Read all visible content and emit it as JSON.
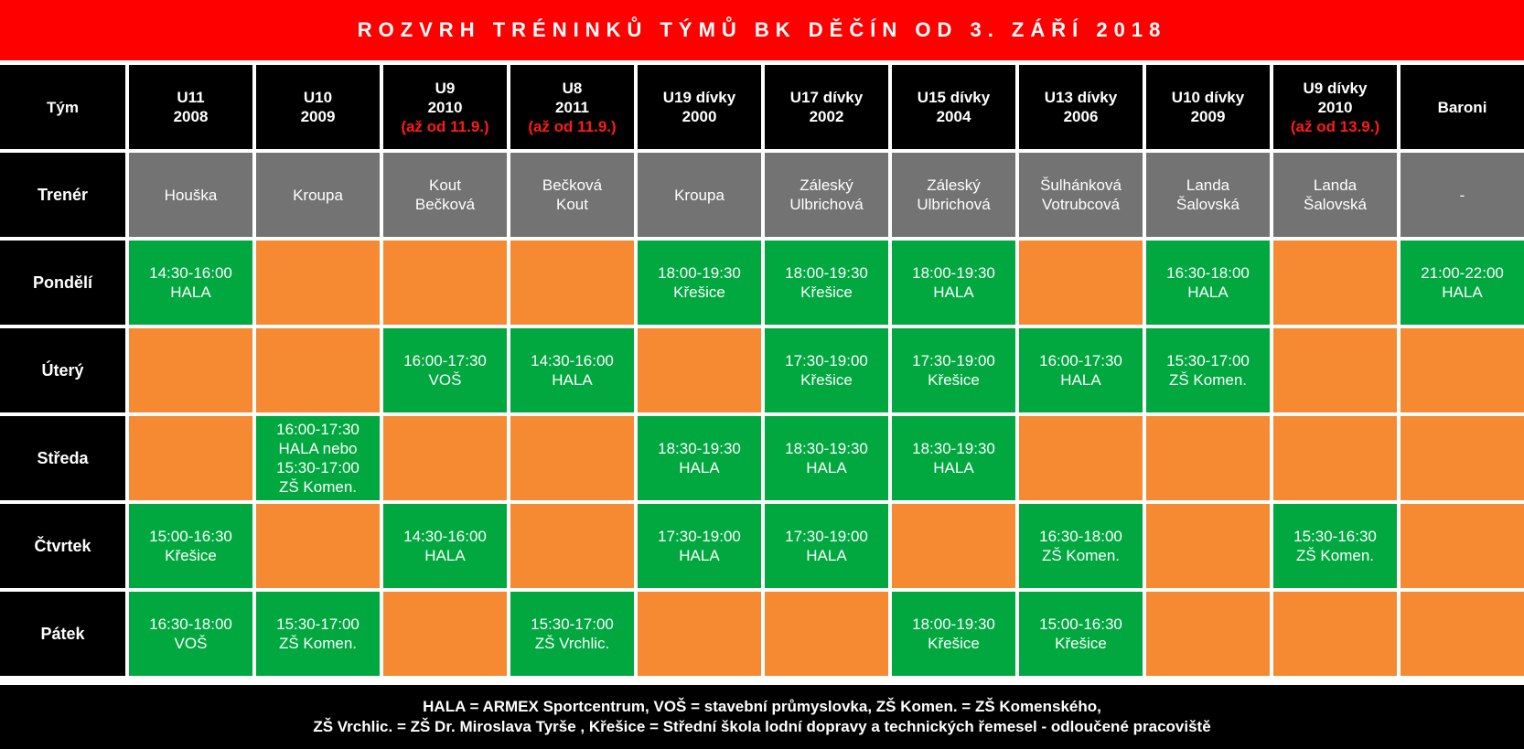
{
  "title": "ROZVRH TRÉNINKŮ TÝMŮ BK DĚČÍN OD 3. ZÁŘÍ 2018",
  "colors": {
    "title_bg": "#ff0000",
    "header_bg": "#000000",
    "coach_bg": "#737373",
    "training_bg": "#00a83f",
    "empty_bg": "#f58a32",
    "note_text": "#ff1a1a"
  },
  "header_labels": {
    "team": "Tým",
    "coach": "Trenér"
  },
  "teams": [
    {
      "name": "U11",
      "year": "2008",
      "note": "",
      "coach": [
        "Houška"
      ]
    },
    {
      "name": "U10",
      "year": "2009",
      "note": "",
      "coach": [
        "Kroupa"
      ]
    },
    {
      "name": "U9",
      "year": "2010",
      "note": "(až od 11.9.)",
      "coach": [
        "Kout",
        "Bečková"
      ]
    },
    {
      "name": "U8",
      "year": "2011",
      "note": "(až od 11.9.)",
      "coach": [
        "Bečková",
        "Kout"
      ]
    },
    {
      "name": "U19 dívky",
      "year": "2000",
      "note": "",
      "coach": [
        "Kroupa"
      ]
    },
    {
      "name": "U17 dívky",
      "year": "2002",
      "note": "",
      "coach": [
        "Záleský",
        "Ulbrichová"
      ]
    },
    {
      "name": "U15 dívky",
      "year": "2004",
      "note": "",
      "coach": [
        "Záleský",
        "Ulbrichová"
      ]
    },
    {
      "name": "U13 dívky",
      "year": "2006",
      "note": "",
      "coach": [
        "Šulhánková",
        "Votrubcová"
      ]
    },
    {
      "name": "U10 dívky",
      "year": "2009",
      "note": "",
      "coach": [
        "Landa",
        "Šalovská"
      ]
    },
    {
      "name": "U9 dívky",
      "year": "2010",
      "note": "(až od 13.9.)",
      "coach": [
        "Landa",
        "Šalovská"
      ]
    },
    {
      "name": "Baroni",
      "year": "",
      "note": "",
      "coach": [
        "-"
      ]
    }
  ],
  "days": [
    {
      "label": "Pondělí",
      "slots": [
        [
          "14:30-16:00",
          "HALA"
        ],
        [],
        [],
        [],
        [
          "18:00-19:30",
          "Křešice"
        ],
        [
          "18:00-19:30",
          "Křešice"
        ],
        [
          "18:00-19:30",
          "HALA"
        ],
        [],
        [
          "16:30-18:00",
          "HALA"
        ],
        [],
        [
          "21:00-22:00",
          "HALA"
        ]
      ]
    },
    {
      "label": "Úterý",
      "slots": [
        [],
        [],
        [
          "16:00-17:30",
          "VOŠ"
        ],
        [
          "14:30-16:00",
          "HALA"
        ],
        [],
        [
          "17:30-19:00",
          "Křešice"
        ],
        [
          "17:30-19:00",
          "Křešice"
        ],
        [
          "16:00-17:30",
          "HALA"
        ],
        [
          "15:30-17:00",
          "ZŠ Komen."
        ],
        [],
        []
      ]
    },
    {
      "label": "Středa",
      "slots": [
        [],
        [
          "16:00-17:30",
          "HALA nebo",
          "15:30-17:00",
          "ZŠ Komen."
        ],
        [],
        [],
        [
          "18:30-19:30",
          "HALA"
        ],
        [
          "18:30-19:30",
          "HALA"
        ],
        [
          "18:30-19:30",
          "HALA"
        ],
        [],
        [],
        [],
        []
      ]
    },
    {
      "label": "Čtvrtek",
      "slots": [
        [
          "15:00-16:30",
          "Křešice"
        ],
        [],
        [
          "14:30-16:00",
          "HALA"
        ],
        [],
        [
          "17:30-19:00",
          "HALA"
        ],
        [
          "17:30-19:00",
          "HALA"
        ],
        [],
        [
          "16:30-18:00",
          "ZŠ Komen."
        ],
        [],
        [
          "15:30-16:30",
          "ZŠ Komen."
        ],
        []
      ]
    },
    {
      "label": "Pátek",
      "slots": [
        [
          "16:30-18:00",
          "VOŠ"
        ],
        [
          "15:30-17:00",
          "ZŠ Komen."
        ],
        [],
        [
          "15:30-17:00",
          "ZŠ Vrchlic."
        ],
        [],
        [],
        [
          "18:00-19:30",
          "Křešice"
        ],
        [
          "15:00-16:30",
          "Křešice"
        ],
        [],
        [],
        []
      ]
    }
  ],
  "legend": [
    "HALA = ARMEX Sportcentrum, VOŠ = stavební průmyslovka, ZŠ Komen. = ZŠ Komenského,",
    "ZŠ Vrchlic. = ZŠ Dr. Miroslava Tyrše , Křešice = Střední škola lodní dopravy a technických řemesel - odloučené pracoviště"
  ]
}
